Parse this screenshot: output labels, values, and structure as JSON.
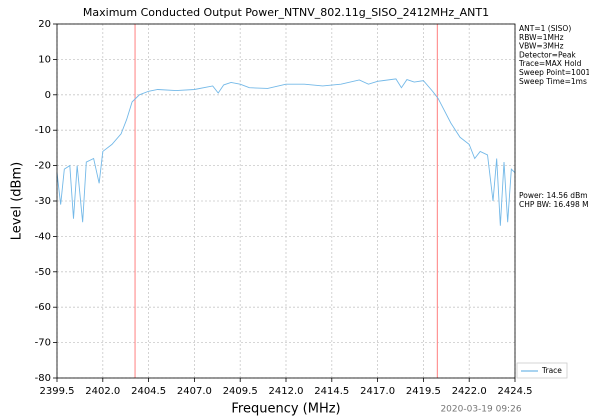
{
  "chart_data": {
    "type": "line",
    "title": "Maximum Conducted Output Power_NTNV_802.11g_SISO_2412MHz_ANT1",
    "x_label": "Frequency (MHz)",
    "y_label": "Level (dBm)",
    "xlim": [
      2399.5,
      2424.5
    ],
    "xticks": [
      2399.5,
      {
        "value": 2402,
        "label": "2402.0"
      },
      2404.5,
      {
        "value": 2407,
        "label": "2407.0"
      },
      2409.5,
      {
        "value": 2412,
        "label": "2412.0"
      },
      2414.5,
      {
        "value": 2417,
        "label": "2417.0"
      },
      2419.5,
      {
        "value": 2422,
        "label": "2422.0"
      },
      2424.5
    ],
    "ylim": [
      -80,
      20
    ],
    "yticks": [
      -80,
      -70,
      -60,
      -50,
      -40,
      -30,
      -20,
      -10,
      0,
      10,
      20
    ],
    "grid": true,
    "x": [
      2399.5,
      2399.7,
      2399.9,
      2400.2,
      2400.4,
      2400.6,
      2400.9,
      2401.1,
      2401.5,
      2401.8,
      2402.0,
      2402.5,
      2403.0,
      2403.3,
      2403.6,
      2404.0,
      2404.5,
      2405.0,
      2406.0,
      2407.0,
      2408.0,
      2408.3,
      2408.6,
      2409.0,
      2409.5,
      2410.0,
      2411.0,
      2412.0,
      2413.0,
      2414.0,
      2415.0,
      2416.0,
      2416.5,
      2417.0,
      2418.0,
      2418.3,
      2418.6,
      2419.0,
      2419.5,
      2420.0,
      2420.3,
      2420.6,
      2421.0,
      2421.5,
      2422.0,
      2422.3,
      2422.6,
      2423.0,
      2423.3,
      2423.5,
      2423.7,
      2423.9,
      2424.1,
      2424.3,
      2424.5
    ],
    "series": [
      {
        "name": "Trace",
        "color": "#74b9e8",
        "values": [
          -22,
          -31,
          -21,
          -20,
          -35,
          -20,
          -36,
          -19,
          -18,
          -25,
          -16,
          -14,
          -11,
          -7,
          -2,
          0,
          1,
          1.5,
          1.2,
          1.5,
          2.5,
          0.5,
          2.8,
          3.5,
          3,
          2,
          1.8,
          3,
          3,
          2.5,
          3,
          4.2,
          3,
          3.8,
          4.5,
          2,
          4.3,
          3.6,
          4,
          1,
          -1,
          -4,
          -8,
          -12,
          -14,
          -18,
          -16,
          -17,
          -30,
          -18,
          -37,
          -19,
          -36,
          -21,
          -22
        ]
      }
    ],
    "markers": {
      "color": "#ff8080",
      "values": [
        2403.76,
        2420.26
      ]
    },
    "info": [
      "ANT=1 (SISO)",
      "RBW=1MHz",
      "VBW=3MHz",
      "Detector=Peak",
      "Trace=MAX Hold",
      "Sweep Point=1001",
      "Sweep Time=1ms"
    ],
    "power_info": [
      "Power: 14.56 dBm",
      "CHP BW: 16.498 MHz"
    ],
    "timestamp": "2020-03-19 09:26"
  }
}
